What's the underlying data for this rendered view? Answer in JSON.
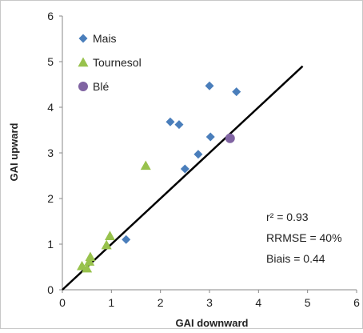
{
  "chart_data": {
    "type": "scatter",
    "xlabel": "GAI downward",
    "ylabel": "GAI upward",
    "xlim": [
      0,
      6
    ],
    "ylim": [
      0,
      6
    ],
    "xticks": [
      "0",
      "1",
      "2",
      "3",
      "4",
      "5",
      "6"
    ],
    "yticks": [
      "0",
      "1",
      "2",
      "3",
      "4",
      "5",
      "6"
    ],
    "grid": false,
    "legend_position": "top-left",
    "series": [
      {
        "name": "Mais",
        "marker": "diamond",
        "color": "#4a7ebb",
        "points": [
          [
            1.3,
            1.1
          ],
          [
            2.2,
            3.68
          ],
          [
            2.38,
            3.62
          ],
          [
            2.5,
            2.65
          ],
          [
            2.77,
            2.97
          ],
          [
            3.0,
            4.47
          ],
          [
            3.02,
            3.35
          ],
          [
            3.55,
            4.34
          ]
        ]
      },
      {
        "name": "Tournesol",
        "marker": "triangle",
        "color": "#98c24d",
        "points": [
          [
            0.4,
            0.52
          ],
          [
            0.5,
            0.47
          ],
          [
            0.55,
            0.62
          ],
          [
            0.57,
            0.72
          ],
          [
            0.9,
            0.98
          ],
          [
            0.97,
            1.18
          ],
          [
            1.7,
            2.72
          ]
        ]
      },
      {
        "name": "Blé",
        "marker": "circle",
        "color": "#8064a2",
        "points": [
          [
            3.42,
            3.32
          ]
        ]
      }
    ],
    "reference_line": {
      "type": "1:1",
      "from": [
        0,
        0
      ],
      "to": [
        4.9,
        4.9
      ],
      "color": "#000000"
    },
    "annotations": [
      "r² = 0.93",
      "RRMSE = 40%",
      "Biais = 0.44"
    ]
  }
}
